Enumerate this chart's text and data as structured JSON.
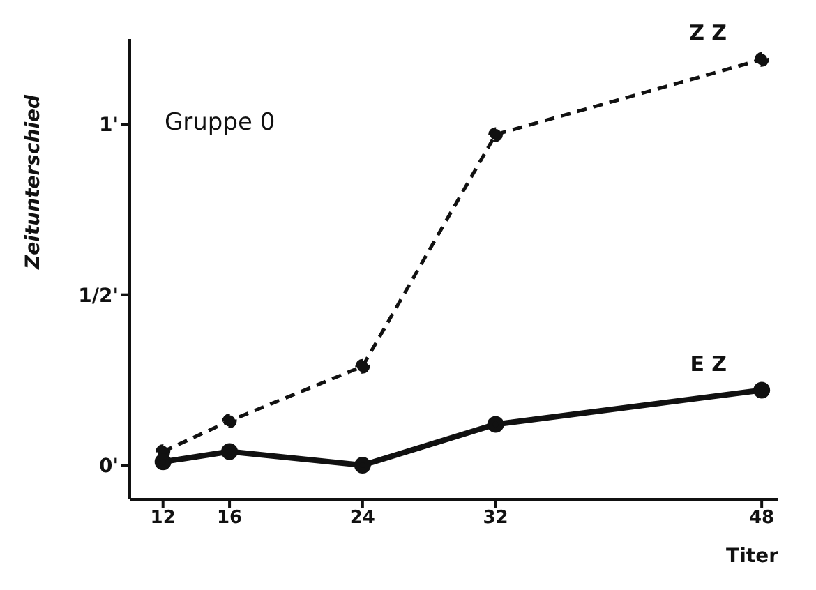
{
  "chart_data": {
    "type": "line",
    "annotations": [
      "Gruppe 0"
    ],
    "xlabel": "Titer",
    "ylabel": "Zeitunterschied",
    "x": [
      12,
      16,
      24,
      32,
      48
    ],
    "series": [
      {
        "name": "Z Z",
        "color": "#111111",
        "line_style": "dashed",
        "values": [
          0.04,
          0.13,
          0.29,
          0.97,
          1.19
        ]
      },
      {
        "name": "E Z",
        "color": "#111111",
        "line_style": "solid",
        "values": [
          0.01,
          0.04,
          0.0,
          0.12,
          0.22
        ]
      }
    ],
    "xlim": [
      10,
      49
    ],
    "xticks": [
      12,
      16,
      24,
      32,
      48
    ],
    "ylim": [
      -0.1,
      1.25
    ],
    "yticks": [
      {
        "value": 0,
        "label": "0'"
      },
      {
        "value": 0.5,
        "label": "1/2'"
      },
      {
        "value": 1,
        "label": "1'"
      }
    ],
    "marker": "circle",
    "grid": false,
    "legend": false
  }
}
